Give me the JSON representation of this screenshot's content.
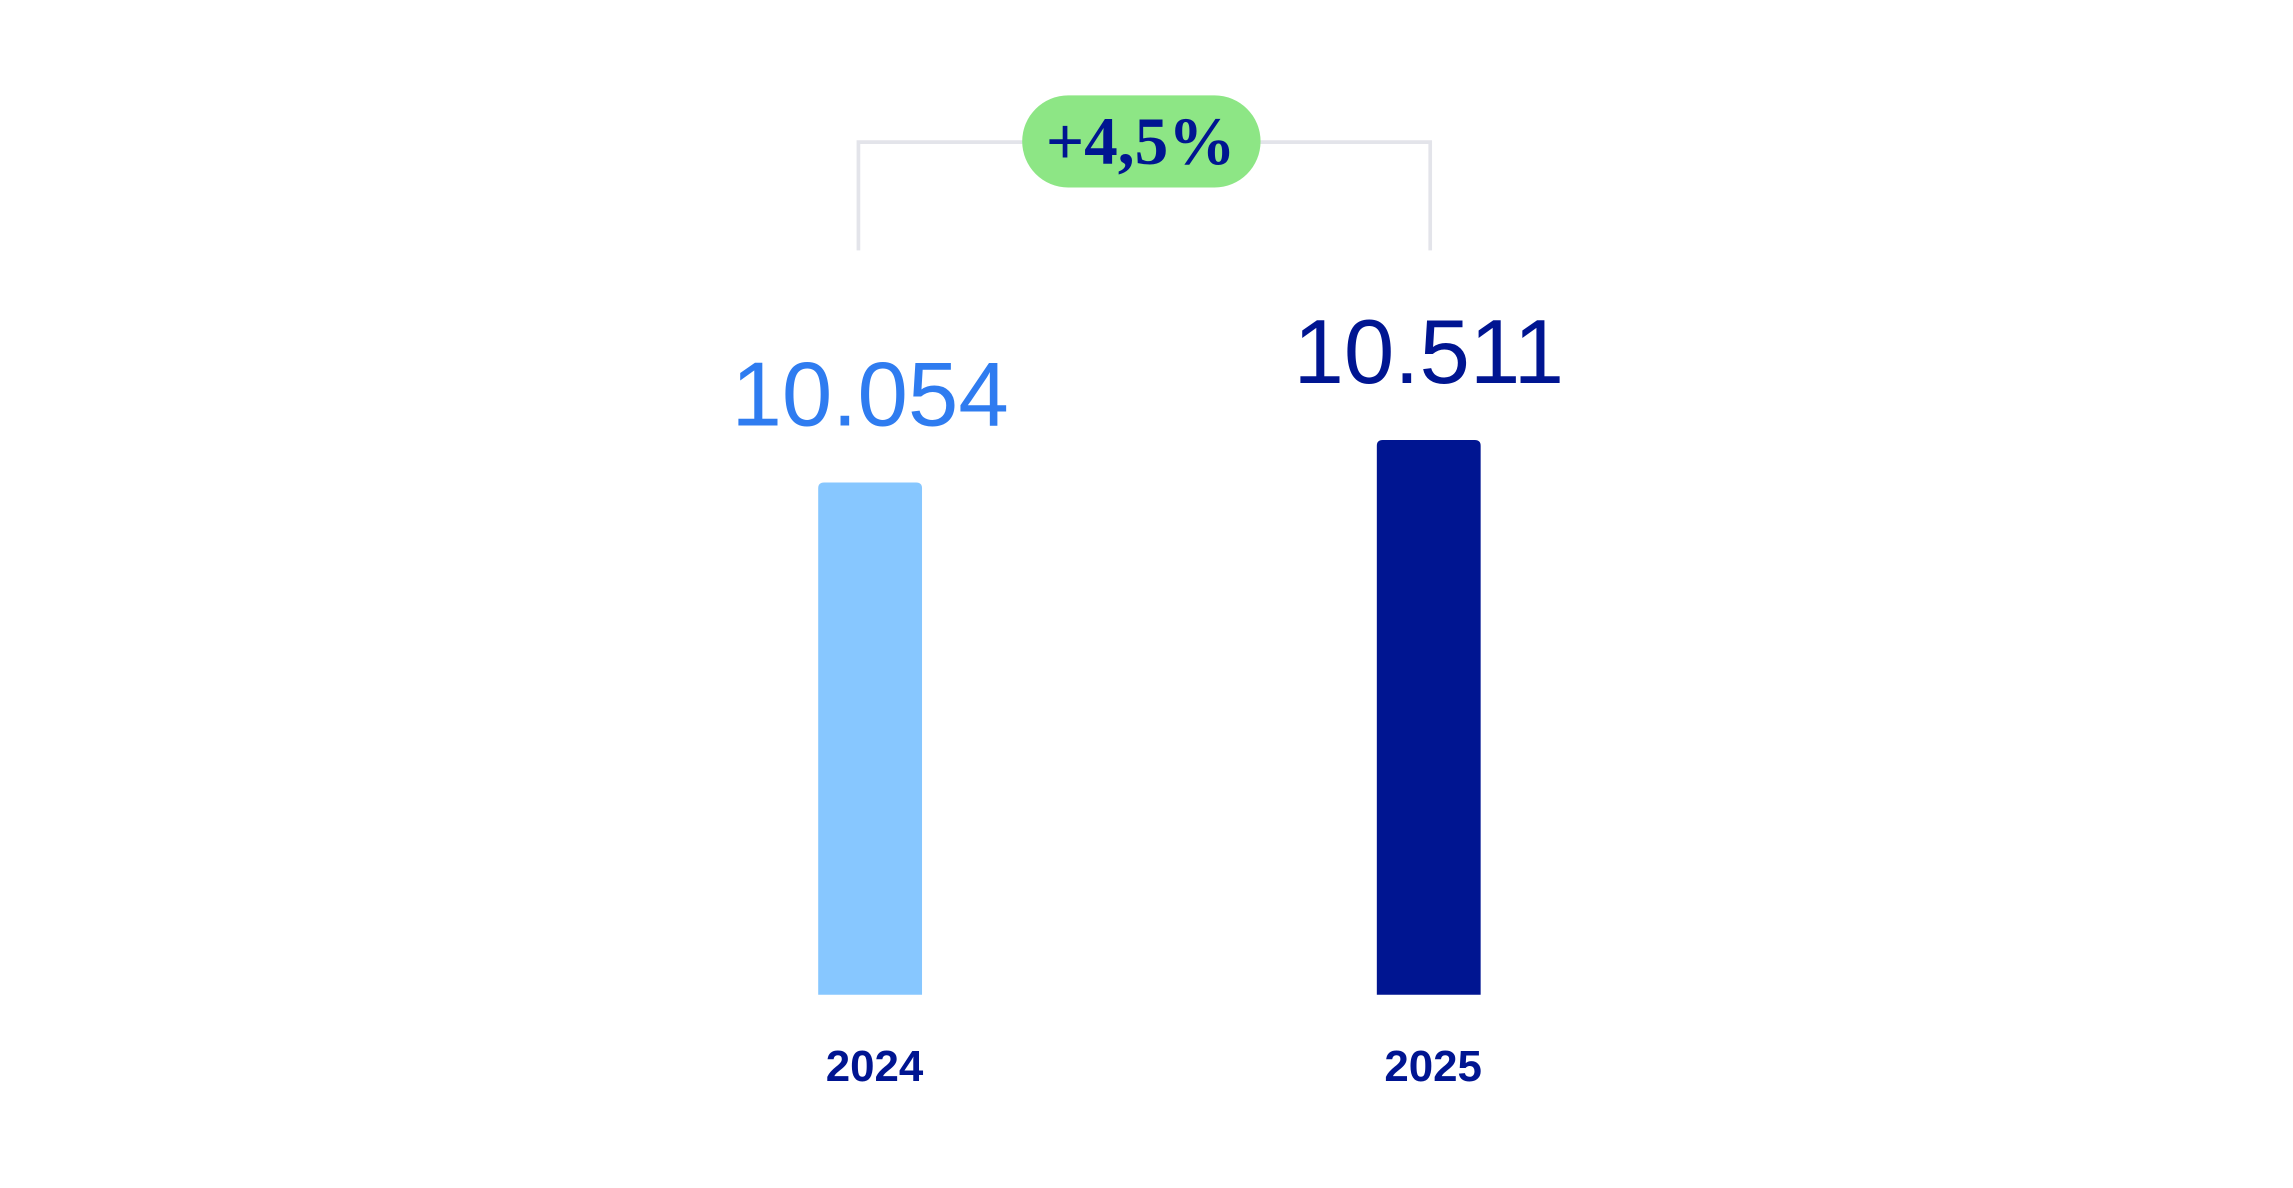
{
  "chart_data": {
    "type": "bar",
    "categories": [
      "2024",
      "2025"
    ],
    "values": [
      10054,
      10511
    ],
    "value_labels": [
      "10.054",
      "10.511"
    ],
    "bar_colors": [
      "#87C7FF",
      "#001591"
    ],
    "label_colors": [
      "#2F7CF0",
      "#001591"
    ],
    "change_label": "+4,5%",
    "change_badge_color": "#8DE685",
    "bracket_color": "#E3E4EA",
    "grid": false,
    "title": "",
    "xlabel": "",
    "ylabel": ""
  }
}
